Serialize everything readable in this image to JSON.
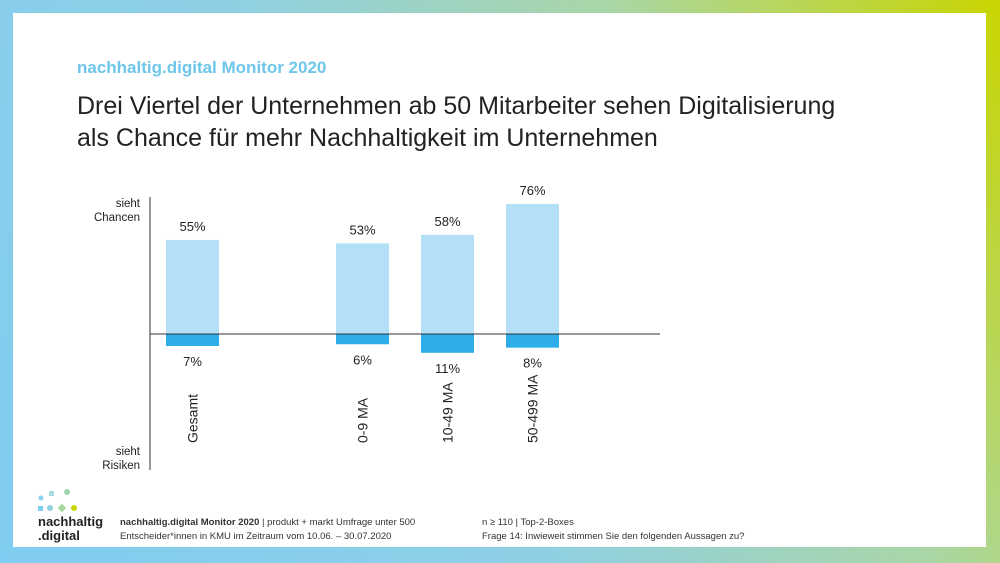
{
  "header": {
    "brand": "nachhaltig.digital Monitor 2020",
    "headline_line1": "Drei Viertel der Unternehmen ab 50 Mitarbeiter sehen Digitalisierung",
    "headline_line2": "als Chance für mehr Nachhaltigkeit im Unternehmen"
  },
  "chart_data": {
    "type": "bar",
    "categories": [
      "Gesamt",
      "0-9 MA",
      "10-49 MA",
      "50-499 MA"
    ],
    "series": [
      {
        "values": [
          55,
          53,
          58,
          76
        ],
        "labels": [
          "55%",
          "53%",
          "58%",
          "76%"
        ],
        "color": "#b3e0f7"
      },
      {
        "values": [
          -7,
          -6,
          -11,
          -8
        ],
        "labels": [
          "7%",
          "6%",
          "11%",
          "8%"
        ],
        "color": "#2daeea"
      }
    ],
    "y_top_label": [
      "sieht",
      "Chancen"
    ],
    "y_bottom_label": [
      "sieht",
      "Risiken"
    ],
    "grid": false
  },
  "footer": {
    "left_bold": "nachhaltig.digital Monitor 2020",
    "left_rest": " | produkt + markt Umfrage unter 500",
    "left_line2": "Entscheider*innen in KMU im Zeitraum vom 10.06. – 30.07.2020",
    "right_line1": "n ≥ 110 | Top-2-Boxes",
    "right_line2": "Frage 14: Inwieweit stimmen Sie den folgenden Aussagen zu?"
  },
  "logo": {
    "line1": "nachhaltig",
    "line2": ".digital"
  }
}
